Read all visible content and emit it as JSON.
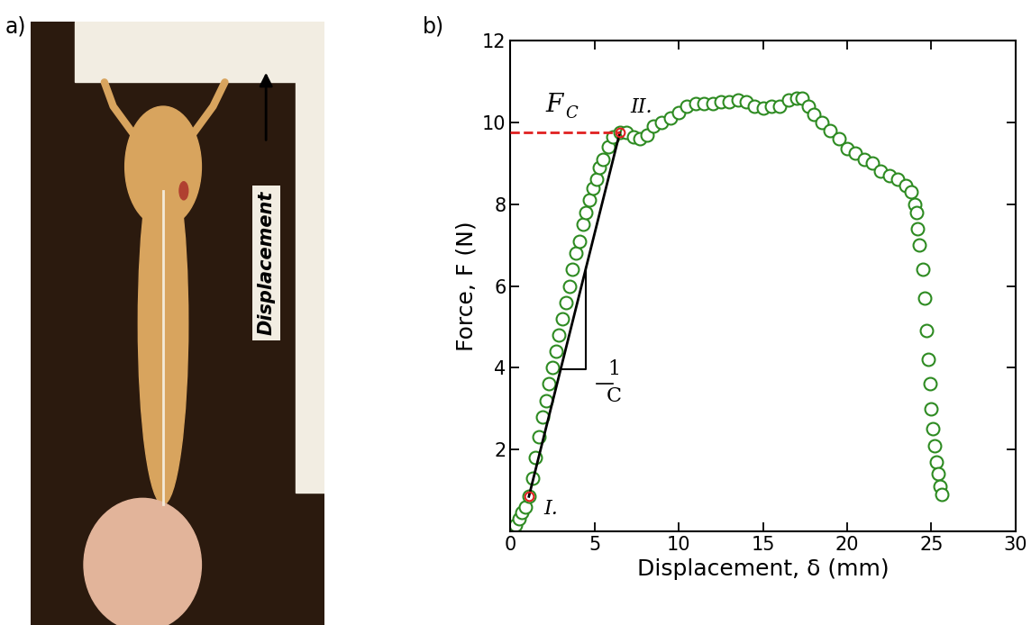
{
  "photo": {
    "panel_label": "a)",
    "arrow_text": "Displacement"
  },
  "chart_data": {
    "type": "scatter",
    "panel_label": "b)",
    "x_label": "Displacement, δ (mm)",
    "y_label": "Force, F (N)",
    "xlim": [
      0,
      30
    ],
    "xticks": [
      0,
      5,
      10,
      15,
      20,
      25,
      30
    ],
    "ylim": [
      0,
      12
    ],
    "yticks": [
      2,
      4,
      6,
      8,
      10,
      12
    ],
    "marker": "o",
    "color": "#2e8b22",
    "x": [
      0.1,
      0.3,
      0.5,
      0.7,
      0.9,
      1.1,
      1.3,
      1.5,
      1.7,
      1.9,
      2.1,
      2.3,
      2.5,
      2.7,
      2.9,
      3.1,
      3.3,
      3.5,
      3.7,
      3.9,
      4.1,
      4.3,
      4.5,
      4.7,
      4.9,
      5.1,
      5.3,
      5.5,
      5.8,
      6.1,
      6.5,
      6.9,
      7.3,
      7.7,
      8.1,
      8.5,
      9.0,
      9.5,
      10.0,
      10.5,
      11.0,
      11.5,
      12.0,
      12.5,
      13.0,
      13.5,
      14.0,
      14.5,
      15.0,
      15.5,
      16.0,
      16.5,
      17.0,
      17.3,
      17.7,
      18.0,
      18.5,
      19.0,
      19.5,
      20.0,
      20.5,
      21.0,
      21.5,
      22.0,
      22.5,
      23.0,
      23.5,
      23.8,
      24.0,
      24.1,
      24.2,
      24.3,
      24.5,
      24.6,
      24.7,
      24.8,
      24.9,
      25.0,
      25.1,
      25.2,
      25.3,
      25.4,
      25.5,
      25.6
    ],
    "values": [
      0.05,
      0.15,
      0.3,
      0.45,
      0.6,
      0.85,
      1.3,
      1.8,
      2.3,
      2.8,
      3.2,
      3.6,
      4.0,
      4.4,
      4.8,
      5.2,
      5.6,
      6.0,
      6.4,
      6.8,
      7.1,
      7.5,
      7.8,
      8.1,
      8.4,
      8.6,
      8.9,
      9.1,
      9.4,
      9.65,
      9.75,
      9.75,
      9.65,
      9.6,
      9.7,
      9.9,
      10.0,
      10.1,
      10.25,
      10.4,
      10.45,
      10.45,
      10.45,
      10.5,
      10.5,
      10.55,
      10.5,
      10.4,
      10.35,
      10.4,
      10.4,
      10.55,
      10.6,
      10.6,
      10.4,
      10.2,
      10.0,
      9.8,
      9.6,
      9.35,
      9.25,
      9.1,
      9.0,
      8.8,
      8.7,
      8.6,
      8.45,
      8.3,
      8.0,
      7.8,
      7.4,
      7.0,
      6.4,
      5.7,
      4.9,
      4.2,
      3.6,
      3.0,
      2.5,
      2.1,
      1.7,
      1.4,
      1.1,
      0.9
    ],
    "fit_line": {
      "x": [
        1.1,
        6.5
      ],
      "values": [
        0.85,
        9.75
      ],
      "color": "#000000",
      "point_color": "#e02020",
      "point_labels": [
        "I.",
        "II."
      ]
    },
    "critical_force": {
      "value": 9.75,
      "symbol": "F",
      "subscript": "C",
      "color": "#e02020",
      "line_style": "dashed"
    },
    "slope_label": {
      "numerator": "1",
      "denominator": "C"
    }
  }
}
